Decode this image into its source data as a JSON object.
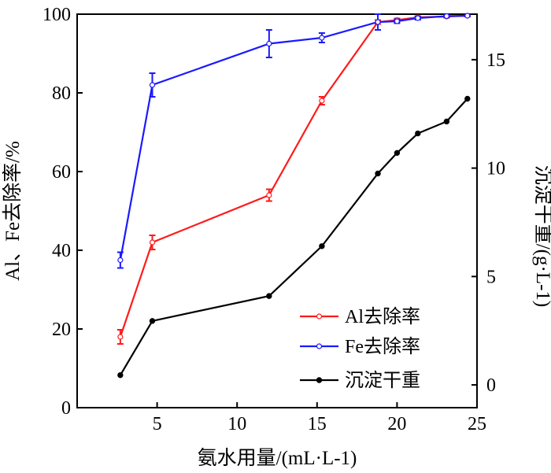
{
  "chart_data": {
    "type": "line",
    "title": "",
    "xlabel": "氨水用量/(mL·L-1)",
    "ylabel": "Al、Fe去除率/%",
    "y2label": "沉淀干重/(g·L-1)",
    "xlim": [
      0,
      25
    ],
    "ylim": [
      0,
      100
    ],
    "y2lim": [
      -1.05,
      17.1
    ],
    "x_ticks": [
      5,
      10,
      15,
      20,
      25
    ],
    "y_ticks": [
      0,
      20,
      40,
      60,
      80,
      100
    ],
    "y2_ticks": [
      0,
      5,
      10,
      15
    ],
    "grid": false,
    "legend_position": "lower-right",
    "series": [
      {
        "name": "Al去除率",
        "axis": "left",
        "color": "#ff1a1a",
        "marker": "open-circle",
        "x": [
          2.7,
          4.7,
          12.0,
          15.3,
          18.8,
          20.0,
          21.3,
          23.1,
          24.4
        ],
        "y": [
          18.0,
          42.0,
          54.0,
          78.0,
          98.0,
          98.5,
          99.2,
          99.4,
          99.6
        ],
        "error": [
          1.8,
          1.8,
          1.5,
          1.0,
          0.5,
          0.4,
          0.3,
          0.3,
          0.2
        ]
      },
      {
        "name": "Fe去除率",
        "axis": "left",
        "color": "#1a1aff",
        "marker": "open-circle",
        "x": [
          2.7,
          4.7,
          12.0,
          15.3,
          18.8,
          20.0,
          21.3,
          23.1,
          24.4
        ],
        "y": [
          37.5,
          82.0,
          92.5,
          94.0,
          98.0,
          98.2,
          99.0,
          99.5,
          99.6
        ],
        "error": [
          2.0,
          3.0,
          3.5,
          1.2,
          2.0,
          0.5,
          0.4,
          0.3,
          0.2
        ]
      },
      {
        "name": "沉淀干重",
        "axis": "right",
        "color": "#000000",
        "marker": "filled-circle",
        "x": [
          2.7,
          4.7,
          12.0,
          15.3,
          18.8,
          20.0,
          21.3,
          23.1,
          24.4
        ],
        "y": [
          0.45,
          2.95,
          4.1,
          6.4,
          9.75,
          10.7,
          11.6,
          12.15,
          13.2
        ]
      }
    ]
  }
}
